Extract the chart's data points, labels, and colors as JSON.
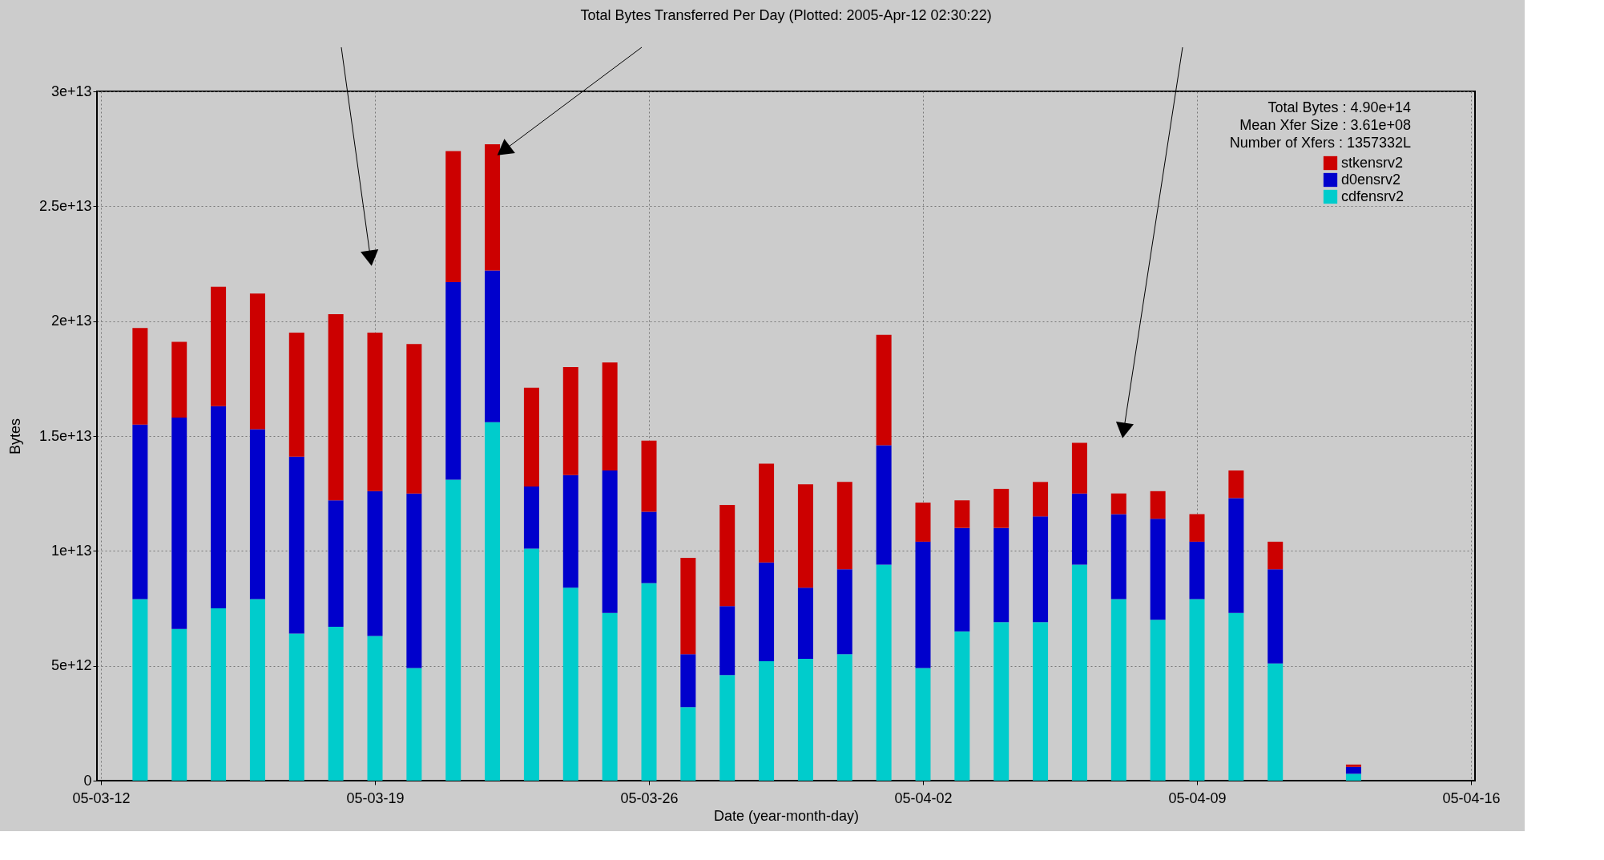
{
  "chart_data": {
    "type": "bar",
    "stacked": true,
    "title": "Total Bytes Transferred Per Day (Plotted: 2005-Apr-12 02:30:22)",
    "xlabel": "Date (year-month-day)",
    "ylabel": "Bytes",
    "x": [
      "2005-03-13",
      "2005-03-14",
      "2005-03-15",
      "2005-03-16",
      "2005-03-17",
      "2005-03-18",
      "2005-03-19",
      "2005-03-20",
      "2005-03-21",
      "2005-03-22",
      "2005-03-23",
      "2005-03-24",
      "2005-03-25",
      "2005-03-26",
      "2005-03-27",
      "2005-03-28",
      "2005-03-29",
      "2005-03-30",
      "2005-03-31",
      "2005-04-01",
      "2005-04-02",
      "2005-04-03",
      "2005-04-04",
      "2005-04-05",
      "2005-04-06",
      "2005-04-07",
      "2005-04-08",
      "2005-04-09",
      "2005-04-10",
      "2005-04-11",
      "2005-04-13"
    ],
    "series": [
      {
        "name": "cdfensrv2",
        "color": "#00cccc",
        "values": [
          7900000000000.0,
          6600000000000.0,
          7500000000000.0,
          7900000000000.0,
          6400000000000.0,
          6700000000000.0,
          6300000000000.0,
          4900000000000.0,
          13100000000000.0,
          15600000000000.0,
          10100000000000.0,
          8400000000000.0,
          7300000000000.0,
          8600000000000.0,
          3200000000000.0,
          4600000000000.0,
          5200000000000.0,
          5300000000000.0,
          5500000000000.0,
          9400000000000.0,
          4900000000000.0,
          6500000000000.0,
          6900000000000.0,
          6900000000000.0,
          9400000000000.0,
          7900000000000.0,
          7000000000000.0,
          7900000000000.0,
          7300000000000.0,
          5100000000000.0,
          300000000000.0
        ]
      },
      {
        "name": "d0ensrv2",
        "color": "#0000cc",
        "values": [
          7600000000000.0,
          9200000000000.0,
          8800000000000.0,
          7400000000000.0,
          7700000000000.0,
          5500000000000.0,
          6300000000000.0,
          7600000000000.0,
          8600000000000.0,
          6600000000000.0,
          2700000000000.0,
          4900000000000.0,
          6200000000000.0,
          3100000000000.0,
          2300000000000.0,
          3000000000000.0,
          4300000000000.0,
          3100000000000.0,
          3700000000000.0,
          5200000000000.0,
          5500000000000.0,
          4500000000000.0,
          4100000000000.0,
          4600000000000.0,
          3100000000000.0,
          3700000000000.0,
          4400000000000.0,
          2500000000000.0,
          5000000000000.0,
          4100000000000.0,
          300000000000.0
        ]
      },
      {
        "name": "stkensrv2",
        "color": "#cc0000",
        "values": [
          4200000000000.0,
          3300000000000.0,
          5200000000000.0,
          5900000000000.0,
          5400000000000.0,
          8100000000000.0,
          6900000000000.0,
          6500000000000.0,
          5700000000000.0,
          5500000000000.0,
          4300000000000.0,
          4700000000000.0,
          4700000000000.0,
          3100000000000.0,
          4200000000000.0,
          4400000000000.0,
          4300000000000.0,
          4500000000000.0,
          3800000000000.0,
          4800000000000.0,
          1700000000000.0,
          1200000000000.0,
          1700000000000.0,
          1500000000000.0,
          2200000000000.0,
          900000000000.0,
          1200000000000.0,
          1200000000000.0,
          1200000000000.0,
          1200000000000.0,
          100000000000.0
        ]
      }
    ],
    "xlim": [
      "2005-03-12",
      "2005-04-16"
    ],
    "xticks": [
      {
        "value": "2005-03-12",
        "label": "05-03-12"
      },
      {
        "value": "2005-03-19",
        "label": "05-03-19"
      },
      {
        "value": "2005-03-26",
        "label": "05-03-26"
      },
      {
        "value": "2005-04-02",
        "label": "05-04-02"
      },
      {
        "value": "2005-04-09",
        "label": "05-04-09"
      },
      {
        "value": "2005-04-16",
        "label": "05-04-16"
      }
    ],
    "ylim": [
      0,
      30000000000000.0
    ],
    "yticks": [
      0,
      {
        "value": 5000000000000.0,
        "label": "5e+12"
      },
      {
        "value": 10000000000000.0,
        "label": "1e+13"
      },
      {
        "value": 15000000000000.0,
        "label": "1.5e+13"
      },
      {
        "value": 20000000000000.0,
        "label": "2e+13"
      },
      {
        "value": 25000000000000.0,
        "label": "2.5e+13"
      },
      {
        "value": 30000000000000.0,
        "label": "3e+13"
      }
    ],
    "grid": true,
    "legend": "top right",
    "annotations": [
      "Total Bytes : 4.90e+14",
      "Mean Xfer Size : 3.61e+08",
      "Number of Xfers : 1357332L"
    ]
  }
}
